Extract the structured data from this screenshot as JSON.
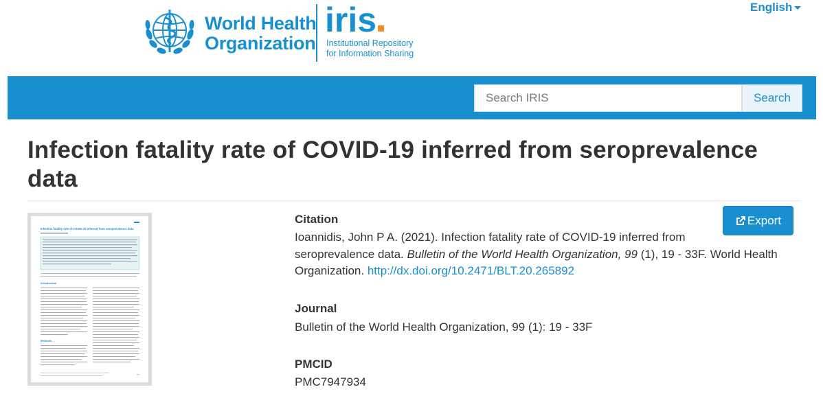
{
  "header": {
    "org_line1": "World Health",
    "org_line2": "Organization",
    "iris": "iris",
    "iris_sub1": "Institutional Repository",
    "iris_sub2": "for Information Sharing",
    "language": "English"
  },
  "search": {
    "placeholder": "Search IRIS",
    "button": "Search"
  },
  "item": {
    "title": "Infection fatality rate of COVID-19 inferred from seroprevalence data",
    "export_label": "Export",
    "citation_label": "Citation",
    "citation_line1": "Ioannidis, John P A. (2021). Infection fatality rate of COVID-19 inferred from",
    "citation_line2_plain": "seroprevalence data. ",
    "citation_line2_italic": "Bulletin of the World Health Organization, 99",
    "citation_line2_rest": " (1), 19 - 33F. World Health",
    "citation_line3_plain": "Organization. ",
    "citation_link": "http://dx.doi.org/10.2471/BLT.20.265892",
    "journal_label": "Journal",
    "journal_value": "Bulletin of the World Health Organization, 99 (1): 19 - 33F",
    "pmcid_label": "PMCID",
    "pmcid_value": "PMC7947934"
  },
  "thumbnail": {
    "heading": "Infection fatality rate of COVID-19 inferred from seroprevalence data",
    "section_intro": "Introduction",
    "section_methods": "Methods"
  },
  "colors": {
    "brand_blue": "#1a8fd0",
    "iris_dot_orange": "#f28c28"
  },
  "icons": {
    "export": "export-icon",
    "language_caret": "chevron-down-icon",
    "who_emblem": "who-emblem-icon"
  }
}
